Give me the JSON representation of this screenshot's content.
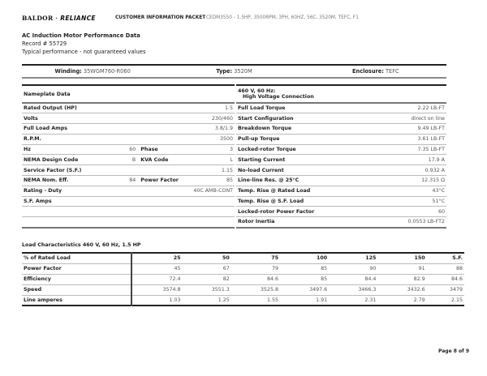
{
  "header": {
    "logo_a": "BALDOR",
    "logo_sep": " · ",
    "logo_b": "RELIANCE",
    "packet": "CUSTOMER INFORMATION PACKET",
    "model": "CEDM3550 - 1.5HP, 3500RPM, 3PH, 60HZ, 56C, 3520M, TEFC, F1"
  },
  "doc": {
    "title": "AC Induction Motor Performance Data",
    "record": "Record # 55729",
    "note": "Typical performance - not guaranteed values"
  },
  "summary": {
    "winding_label": "Winding:",
    "winding": "35WGM760-R060",
    "type_label": "Type:",
    "type": "3520M",
    "enclosure_label": "Enclosure:",
    "enclosure": "TEFC"
  },
  "nameplate": {
    "title": "Nameplate Data",
    "rows": [
      {
        "l": "Rated Output (HP)",
        "v": "1.5"
      },
      {
        "l": "Volts",
        "v": "230/460"
      },
      {
        "l": "Full Load Amps",
        "v": "3.8/1.9"
      },
      {
        "l": "R.P.M.",
        "v": "3500"
      },
      {
        "l": "Hz",
        "v": "60",
        "l2": "Phase",
        "v2": "3"
      },
      {
        "l": "NEMA Design Code",
        "v": "B",
        "l2": "KVA Code",
        "v2": "L"
      },
      {
        "l": "Service Factor (S.F.)",
        "v": "1.15"
      },
      {
        "l": "NEMA Nom. Eff.",
        "v": "84",
        "l2": "Power Factor",
        "v2": "85"
      },
      {
        "l": "Rating - Duty",
        "v": "40C AMB-CONT"
      },
      {
        "l": "S.F. Amps",
        "v": ""
      },
      {
        "l": "",
        "v": ""
      },
      {
        "l": "",
        "v": ""
      }
    ]
  },
  "hv": {
    "title1": "460 V, 60 Hz:",
    "title2": "High Voltage Connection",
    "rows": [
      {
        "l": "Full Load Torque",
        "v": "2.22 LB-FT"
      },
      {
        "l": "Start Configuration",
        "v": "direct on line"
      },
      {
        "l": "Breakdown Torque",
        "v": "9.49 LB-FT"
      },
      {
        "l": "Pull-up Torque",
        "v": "3.61 LB-FT"
      },
      {
        "l": "Locked-rotor Torque",
        "v": "7.35 LB-FT"
      },
      {
        "l": "Starting Current",
        "v": "17.9 A"
      },
      {
        "l": "No-load Current",
        "v": "0.932 A"
      },
      {
        "l": "Line-line Res. @ 25°C",
        "v": "12.315 Ω"
      },
      {
        "l": "Temp. Rise @ Rated Load",
        "v": "43°C"
      },
      {
        "l": "Temp. Rise @ S.F. Load",
        "v": "51°C"
      },
      {
        "l": "Locked-rotor Power Factor",
        "v": "60"
      },
      {
        "l": "Rotor Inertia",
        "v": "0.0553 LB-FT2"
      }
    ]
  },
  "load": {
    "title": "Load Characteristics 460 V, 60 Hz, 1.5 HP",
    "header": [
      "% of Rated Load",
      "25",
      "50",
      "75",
      "100",
      "125",
      "150",
      "S.F."
    ],
    "rows": [
      [
        "Power Factor",
        "45",
        "67",
        "79",
        "85",
        "90",
        "91",
        "88"
      ],
      [
        "Efficiency",
        "72.4",
        "82",
        "84.6",
        "85",
        "84.4",
        "82.9",
        "84.6"
      ],
      [
        "Speed",
        "3574.8",
        "3551.3",
        "3525.8",
        "3497.6",
        "3466.3",
        "3432.6",
        "3479"
      ],
      [
        "Line amperes",
        "1.03",
        "1.25",
        "1.55",
        "1.91",
        "2.31",
        "2.79",
        "2.15"
      ]
    ]
  },
  "footer": {
    "page": "Page 8 of 9"
  }
}
